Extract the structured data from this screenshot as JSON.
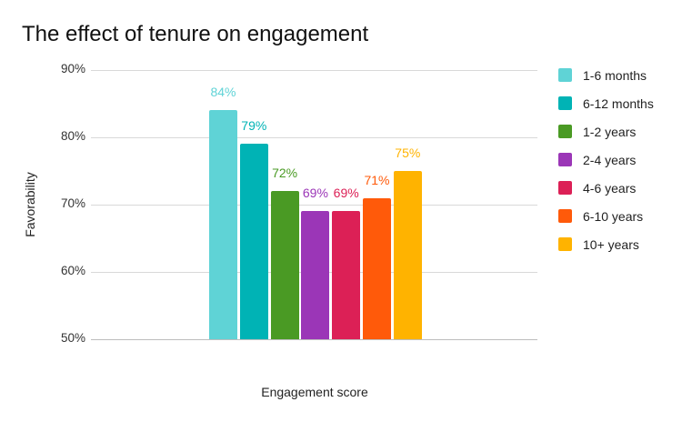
{
  "chart_data": {
    "type": "bar",
    "title": "The effect of tenure on engagement",
    "xlabel": "Engagement score",
    "ylabel": "Favorability",
    "categories": [
      "Engagement score"
    ],
    "series": [
      {
        "name": "1-6 months",
        "values": [
          84
        ],
        "color": "#5fd3d6",
        "label": "84%"
      },
      {
        "name": "6-12 months",
        "values": [
          79
        ],
        "color": "#00b3b5",
        "label": "79%"
      },
      {
        "name": "1-2 years",
        "values": [
          72
        ],
        "color": "#4a9a24",
        "label": "72%"
      },
      {
        "name": "2-4 years",
        "values": [
          69
        ],
        "color": "#9b36b7",
        "label": "69%"
      },
      {
        "name": "4-6 years",
        "values": [
          69
        ],
        "color": "#dc2056",
        "label": "69%"
      },
      {
        "name": "6-10 years",
        "values": [
          71
        ],
        "color": "#ff5a0a",
        "label": "71%"
      },
      {
        "name": "10+ years",
        "values": [
          75
        ],
        "color": "#ffb300",
        "label": "75%"
      }
    ],
    "yticks": [
      "50%",
      "60%",
      "70%",
      "80%",
      "90%"
    ],
    "ylim": [
      50,
      90
    ],
    "grid": true,
    "legend_position": "right"
  },
  "label_colors": [
    "#5fd3d6",
    "#00b3b5",
    "#4a9a24",
    "#9b36b7",
    "#dc2056",
    "#ff5a0a",
    "#ffb300"
  ]
}
